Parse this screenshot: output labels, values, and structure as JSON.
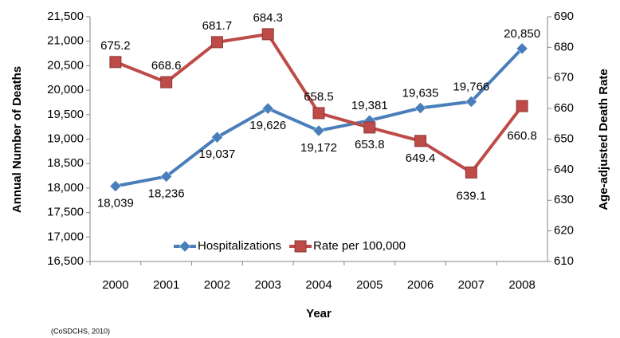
{
  "chart_data": {
    "type": "line",
    "categories": [
      "2000",
      "2001",
      "2002",
      "2003",
      "2004",
      "2005",
      "2006",
      "2007",
      "2008"
    ],
    "series": [
      {
        "name": "Hospitalizations",
        "color": "#4a7ebb",
        "marker": "diamond",
        "values": [
          18039,
          18236,
          19037,
          19626,
          19172,
          19381,
          19635,
          19766,
          20850
        ],
        "value_labels": [
          "18,039",
          "18,236",
          "19,037",
          "19,626",
          "19,172",
          "19,381",
          "19,635",
          "19,766",
          "20,850"
        ]
      },
      {
        "name": "Rate per 100,000",
        "color": "#be4b48",
        "marker": "square",
        "axis": "y2",
        "values": [
          675.2,
          668.6,
          681.7,
          684.3,
          658.5,
          653.8,
          649.4,
          639.1,
          660.8
        ]
      }
    ],
    "ylabel": "Annual Number of Deaths",
    "y2label": "Age-adjusted Death Rate",
    "xlabel": "Year",
    "ylim": [
      16500,
      21500
    ],
    "yticks": [
      {
        "value": 16500,
        "label": "16,500"
      },
      {
        "value": 17000,
        "label": "17,000"
      },
      {
        "value": 17500,
        "label": "17,500"
      },
      {
        "value": 18000,
        "label": "18,000"
      },
      {
        "value": 18500,
        "label": "18,500"
      },
      {
        "value": 19000,
        "label": "19,000"
      },
      {
        "value": 19500,
        "label": "19,500"
      },
      {
        "value": 20000,
        "label": "20,000"
      },
      {
        "value": 20500,
        "label": "20,500"
      },
      {
        "value": 21000,
        "label": "21,000"
      },
      {
        "value": 21500,
        "label": "21,500"
      }
    ],
    "y2lim": [
      610,
      690
    ],
    "y2ticks": [
      610,
      620,
      630,
      640,
      650,
      660,
      670,
      680,
      690
    ],
    "legend": "bottom",
    "grid": false,
    "source": "(CoSDCHS, 2010)"
  }
}
